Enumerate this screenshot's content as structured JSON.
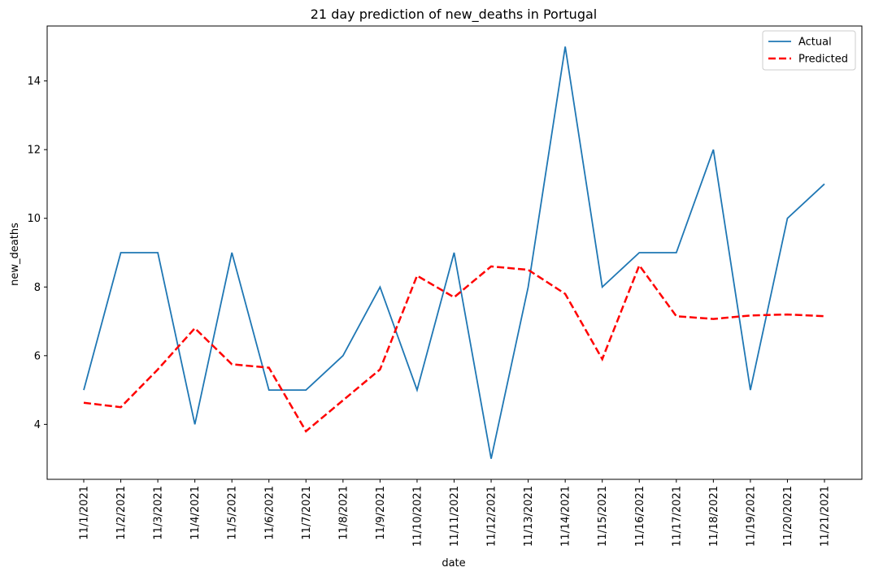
{
  "chart_data": {
    "type": "line",
    "title": "21 day prediction of new_deaths in Portugal",
    "xlabel": "date",
    "ylabel": "new_deaths",
    "x": [
      "11/1/2021",
      "11/2/2021",
      "11/3/2021",
      "11/4/2021",
      "11/5/2021",
      "11/6/2021",
      "11/7/2021",
      "11/8/2021",
      "11/9/2021",
      "11/10/2021",
      "11/11/2021",
      "11/12/2021",
      "11/13/2021",
      "11/14/2021",
      "11/15/2021",
      "11/16/2021",
      "11/17/2021",
      "11/18/2021",
      "11/19/2021",
      "11/20/2021",
      "11/21/2021"
    ],
    "ylim": [
      2.4,
      15.6
    ],
    "yticks": [
      4,
      6,
      8,
      10,
      12,
      14
    ],
    "legend_position": "top-right",
    "grid": false,
    "series": [
      {
        "name": "Actual",
        "color": "#1f77b4",
        "style": "solid",
        "values": [
          5,
          9,
          9,
          4,
          9,
          5,
          5,
          6,
          8,
          5,
          9,
          3,
          8,
          15,
          8,
          9,
          9,
          12,
          5,
          10,
          11
        ]
      },
      {
        "name": "Predicted",
        "color": "#ff0000",
        "style": "dashed",
        "values": [
          4.63,
          4.5,
          5.6,
          6.8,
          5.75,
          5.65,
          3.8,
          4.7,
          5.6,
          8.33,
          7.7,
          8.6,
          8.5,
          7.8,
          5.9,
          8.63,
          7.15,
          7.07,
          7.17,
          7.2,
          7.15
        ]
      }
    ]
  }
}
